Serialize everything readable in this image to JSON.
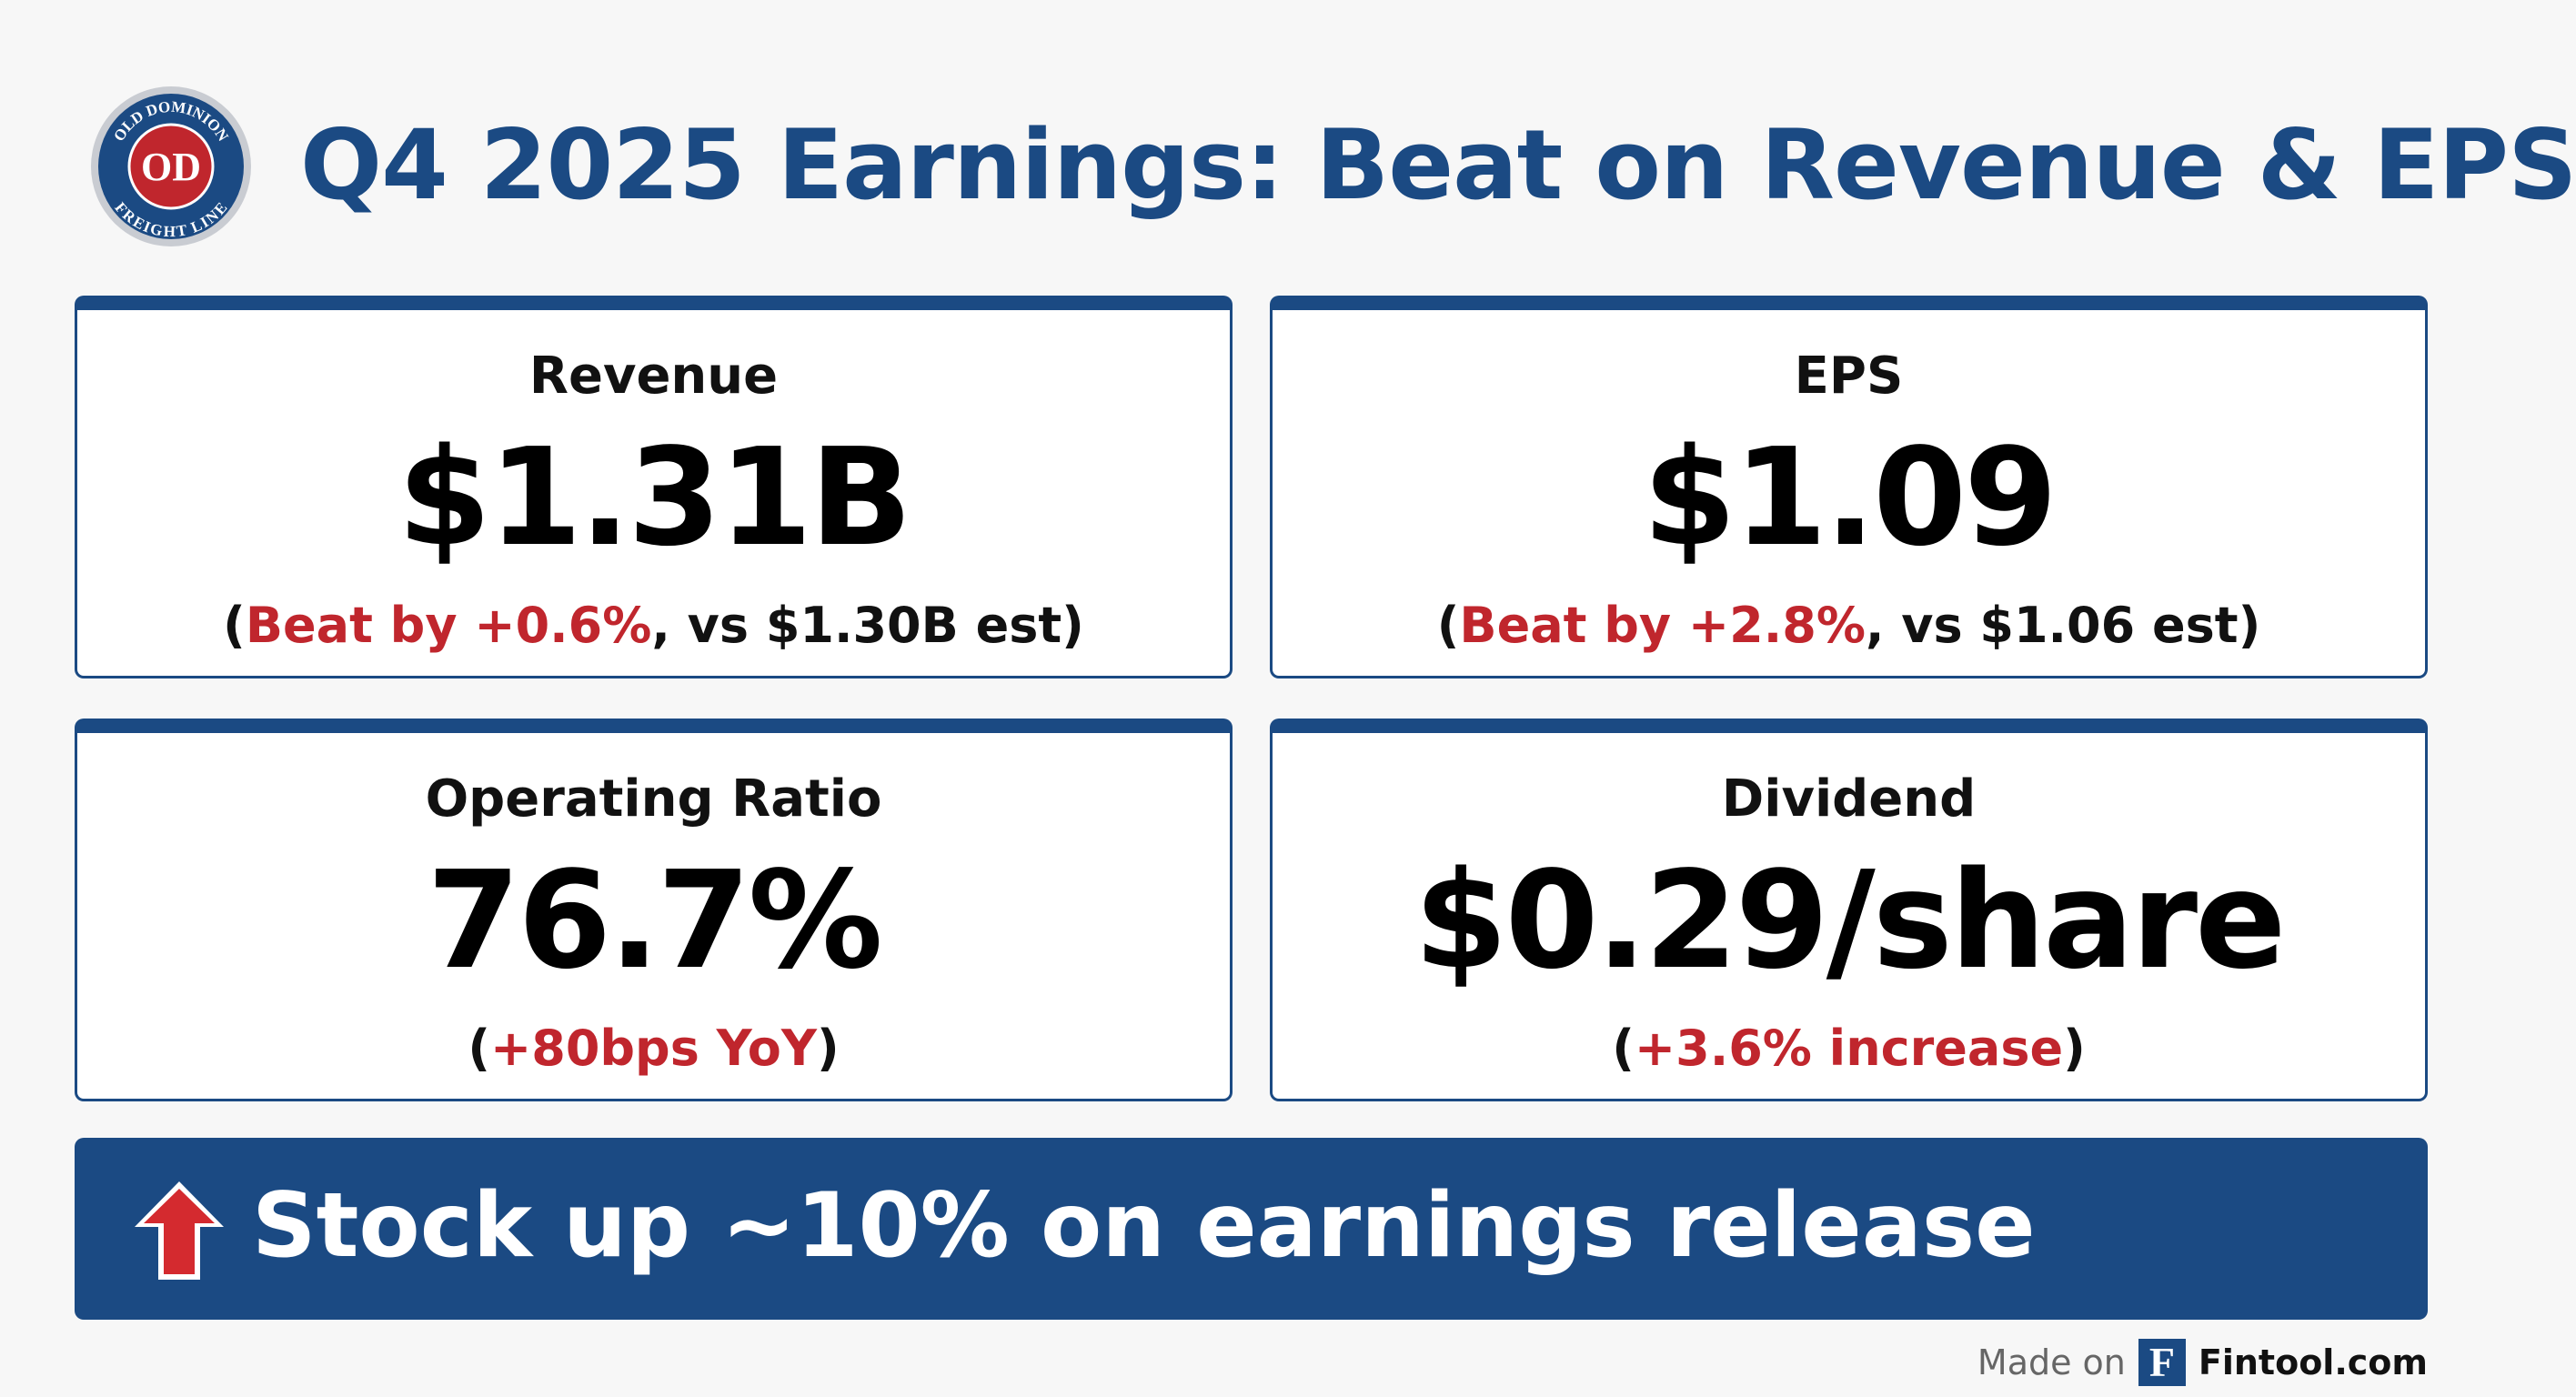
{
  "header": {
    "logo": {
      "top": "OLD DOMINION",
      "mark": "OD",
      "bottom": "FREIGHT LINE"
    },
    "title": "Q4 2025 Earnings: Beat on Revenue & EPS"
  },
  "cards": [
    {
      "label": "Revenue",
      "value": "$1.31B",
      "note": {
        "open": "(",
        "highlight": "Beat by +0.6%",
        "rest": ", vs $1.30B est)"
      }
    },
    {
      "label": "EPS",
      "value": "$1.09",
      "note": {
        "open": "(",
        "highlight": "Beat by +2.8%",
        "rest": ", vs $1.06 est)"
      }
    },
    {
      "label": "Operating Ratio",
      "value": "76.7%",
      "note": {
        "open": "(",
        "highlight": "+80bps YoY",
        "rest": ")"
      }
    },
    {
      "label": "Dividend",
      "value": "$0.29/share",
      "note": {
        "open": "(",
        "highlight": "+3.6% increase",
        "rest": ")"
      }
    }
  ],
  "banner": "Stock up ~10% on earnings release",
  "footer": {
    "made_on": "Made on",
    "brand_mark": "F",
    "brand": "Fintool.com"
  }
}
